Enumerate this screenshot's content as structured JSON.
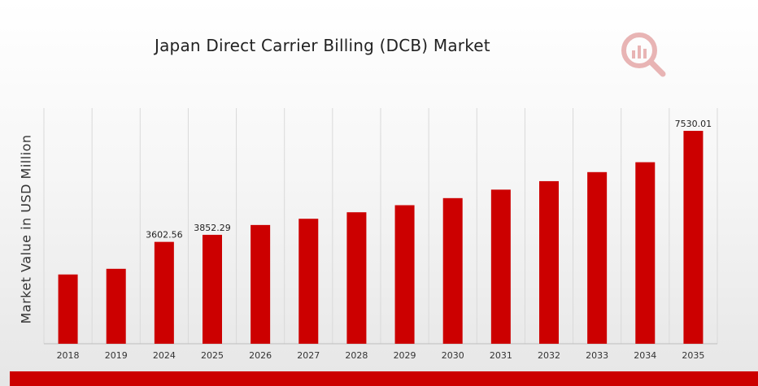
{
  "chart_data": {
    "type": "bar",
    "title": "Japan Direct Carrier Billing (DCB) Market",
    "xlabel": "",
    "ylabel": "Market Value in USD Million",
    "categories": [
      "2018",
      "2019",
      "2024",
      "2025",
      "2026",
      "2027",
      "2028",
      "2029",
      "2030",
      "2031",
      "2032",
      "2033",
      "2034",
      "2035"
    ],
    "values": [
      2450,
      2650,
      3602.56,
      3852.29,
      4200,
      4420,
      4650,
      4900,
      5150,
      5450,
      5750,
      6070,
      6420,
      7530.01
    ],
    "data_labels": {
      "2": "3602.56",
      "3": "3852.29",
      "13": "7530.01"
    },
    "ylim": [
      0,
      7530.01
    ],
    "grid": "vertical",
    "legend": "none",
    "colors": {
      "bar": "#cc0000",
      "grid": "#d9d9d9",
      "accent": "#cc0000"
    }
  },
  "logo": {
    "icon": "magnifier-bar-chart-logo-icon"
  }
}
